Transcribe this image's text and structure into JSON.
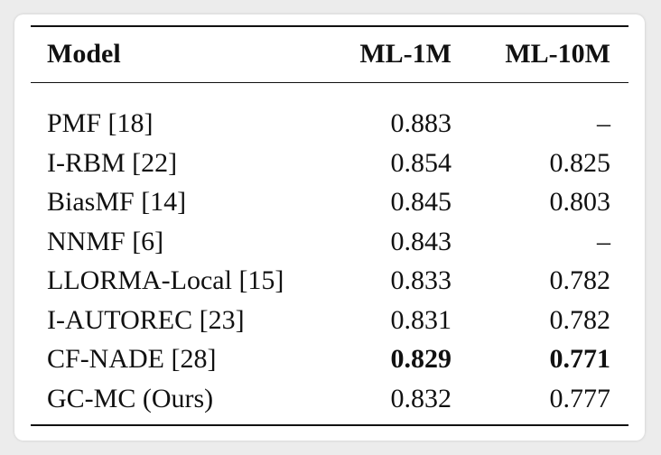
{
  "table": {
    "header": [
      "Model",
      "ML-1M",
      "ML-10M"
    ],
    "rows": [
      [
        "PMF [18]",
        "0.883",
        "–"
      ],
      [
        "I-RBM [22]",
        "0.854",
        "0.825"
      ],
      [
        "BiasMF [14]",
        "0.845",
        "0.803"
      ],
      [
        "NNMF [6]",
        "0.843",
        "–"
      ],
      [
        "LLORMA-Local [15]",
        "0.833",
        "0.782"
      ],
      [
        "I-AUTOREC [23]",
        "0.831",
        "0.782"
      ],
      [
        "CF-NADE [28]",
        "0.829",
        "0.771"
      ],
      [
        "GC-MC (Ours)",
        "0.832",
        "0.777"
      ]
    ]
  }
}
